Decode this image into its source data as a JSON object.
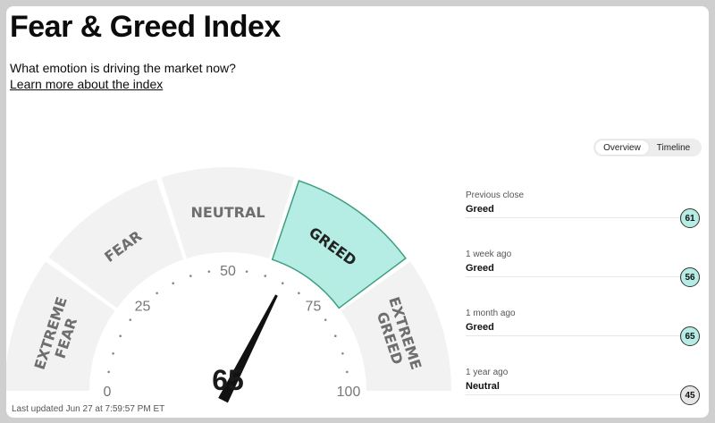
{
  "header": {
    "title": "Fear & Greed Index",
    "subtitle": "What emotion is driving the market now?",
    "learn_more": "Learn more about the index"
  },
  "tabs": [
    {
      "label": "Overview",
      "active": true
    },
    {
      "label": "Timeline",
      "active": false
    }
  ],
  "gauge": {
    "value": 65,
    "value_label": "65",
    "segments": [
      {
        "label_lines": [
          "EXTREME",
          "FEAR"
        ],
        "color": "#f2f2f2"
      },
      {
        "label_lines": [
          "FEAR"
        ],
        "color": "#f2f2f2"
      },
      {
        "label_lines": [
          "NEUTRAL"
        ],
        "color": "#f2f2f2"
      },
      {
        "label_lines": [
          "GREED"
        ],
        "color": "#b5ece3",
        "active": true
      },
      {
        "label_lines": [
          "EXTREME",
          "GREED"
        ],
        "color": "#f2f2f2"
      }
    ],
    "ticks": [
      "0",
      "25",
      "50",
      "75",
      "100"
    ]
  },
  "history": [
    {
      "label": "Previous close",
      "rating": "Greed",
      "value": "61",
      "color": "#b5ece3"
    },
    {
      "label": "1 week ago",
      "rating": "Greed",
      "value": "56",
      "color": "#b5ece3"
    },
    {
      "label": "1 month ago",
      "rating": "Greed",
      "value": "65",
      "color": "#b5ece3"
    },
    {
      "label": "1 year ago",
      "rating": "Neutral",
      "value": "45",
      "color": "#e6e6e6"
    }
  ],
  "last_updated": "Last updated Jun 27 at 7:59:57 PM ET"
}
